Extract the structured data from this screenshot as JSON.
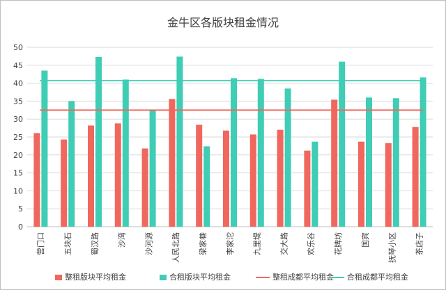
{
  "chart_data": {
    "type": "bar",
    "title": "金牛区各版块租金情况",
    "categories": [
      "营门口",
      "五块石",
      "蜀汉路",
      "沙湾",
      "沙河源",
      "人民北路",
      "梁家巷",
      "李家沱",
      "九里堤",
      "交大路",
      "欢乐谷",
      "花牌坊",
      "国宾",
      "抚琴小区",
      "茶店子"
    ],
    "series": [
      {
        "name": "整租版块平均租金",
        "color": "#f0675d",
        "values": [
          26.1,
          24.3,
          28.2,
          28.8,
          21.8,
          35.6,
          28.4,
          26.8,
          25.7,
          27.0,
          21.2,
          35.4,
          23.7,
          23.3,
          27.8
        ]
      },
      {
        "name": "合租版块平均租金",
        "color": "#3fcdb5",
        "values": [
          43.5,
          35.0,
          47.3,
          41.0,
          32.4,
          47.4,
          22.4,
          41.4,
          41.2,
          38.5,
          23.7,
          46.0,
          36.0,
          35.8,
          41.6
        ]
      }
    ],
    "reference_lines": [
      {
        "name": "整租成都平均租金",
        "color": "#f0675d",
        "value": 32.5
      },
      {
        "name": "合租成都平均租金",
        "color": "#3fcdb5",
        "value": 40.7
      }
    ],
    "ylim": [
      0,
      50
    ],
    "yticks": [
      0,
      5,
      10,
      15,
      20,
      25,
      30,
      35,
      40,
      45,
      50
    ],
    "xlabel": "",
    "ylabel": "",
    "grid": true,
    "legend_position": "bottom"
  }
}
